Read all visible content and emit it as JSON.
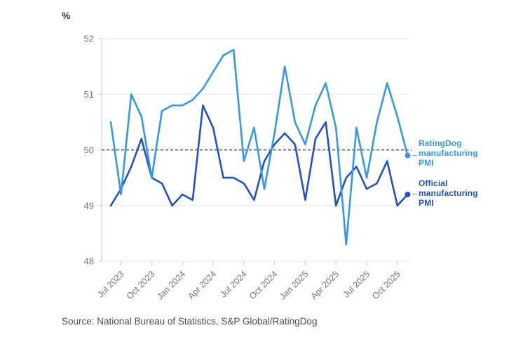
{
  "unit_label": "%",
  "source_note": "Source: National Bureau of Statistics, S&P Global/RatingDog",
  "legend": {
    "ratingdog": {
      "label": "RatingDog manufacturing PMI",
      "color": "#3598E8"
    },
    "official": {
      "label": "Official manufacturing PMI",
      "color": "#2150C8"
    }
  },
  "colors": {
    "ratingdog_line": "#3598E8",
    "official_line": "#2150C8",
    "grid": "#E6E6E6",
    "axis": "#C9C9C9",
    "tick_label": "#757575",
    "reference_line": "#191919",
    "leader": "#9a9a9a"
  },
  "axes": {
    "y_ticks": [
      52,
      51,
      50,
      49,
      48
    ],
    "y_min": 48,
    "y_max": 52,
    "reference_value": 50,
    "x_tick_labels": [
      "Jul 2023",
      "Oct 2023",
      "Jan 2024",
      "Apr 2024",
      "Jul 2024",
      "Oct 2024",
      "Jan 2025",
      "Apr 2025",
      "Jul 2025",
      "Oct 2025"
    ],
    "x_tick_month_indices": [
      1,
      4,
      7,
      10,
      13,
      16,
      19,
      22,
      25,
      28
    ]
  },
  "chart_data": {
    "type": "line",
    "title": "",
    "ylabel": "%",
    "ylim": [
      48,
      52
    ],
    "reference_line": 50,
    "grid": "horizontal",
    "legend_position": "right-edge-labels",
    "x": [
      "Jun 2023",
      "Jul 2023",
      "Aug 2023",
      "Sep 2023",
      "Oct 2023",
      "Nov 2023",
      "Dec 2023",
      "Jan 2024",
      "Feb 2024",
      "Mar 2024",
      "Apr 2024",
      "May 2024",
      "Jun 2024",
      "Jul 2024",
      "Aug 2024",
      "Sep 2024",
      "Oct 2024",
      "Nov 2024",
      "Dec 2024",
      "Jan 2025",
      "Feb 2025",
      "Mar 2025",
      "Apr 2025",
      "May 2025",
      "Jun 2025",
      "Jul 2025",
      "Aug 2025",
      "Sep 2025",
      "Oct 2025",
      "Nov 2025"
    ],
    "series": [
      {
        "name": "RatingDog manufacturing PMI",
        "color": "#3598E8",
        "values": [
          50.5,
          49.2,
          51.0,
          50.6,
          49.5,
          50.7,
          50.8,
          50.8,
          50.9,
          51.1,
          51.4,
          51.7,
          51.8,
          49.8,
          50.4,
          49.3,
          50.3,
          51.5,
          50.5,
          50.1,
          50.8,
          51.2,
          50.4,
          48.3,
          50.4,
          49.5,
          50.5,
          51.2,
          50.6,
          49.9
        ]
      },
      {
        "name": "Official manufacturing PMI",
        "color": "#2150C8",
        "values": [
          49.0,
          49.3,
          49.7,
          50.2,
          49.5,
          49.4,
          49.0,
          49.2,
          49.1,
          50.8,
          50.4,
          49.5,
          49.5,
          49.4,
          49.1,
          49.8,
          50.1,
          50.3,
          50.1,
          49.1,
          50.2,
          50.5,
          49.0,
          49.5,
          49.7,
          49.3,
          49.4,
          49.8,
          49.0,
          49.2
        ]
      }
    ]
  }
}
